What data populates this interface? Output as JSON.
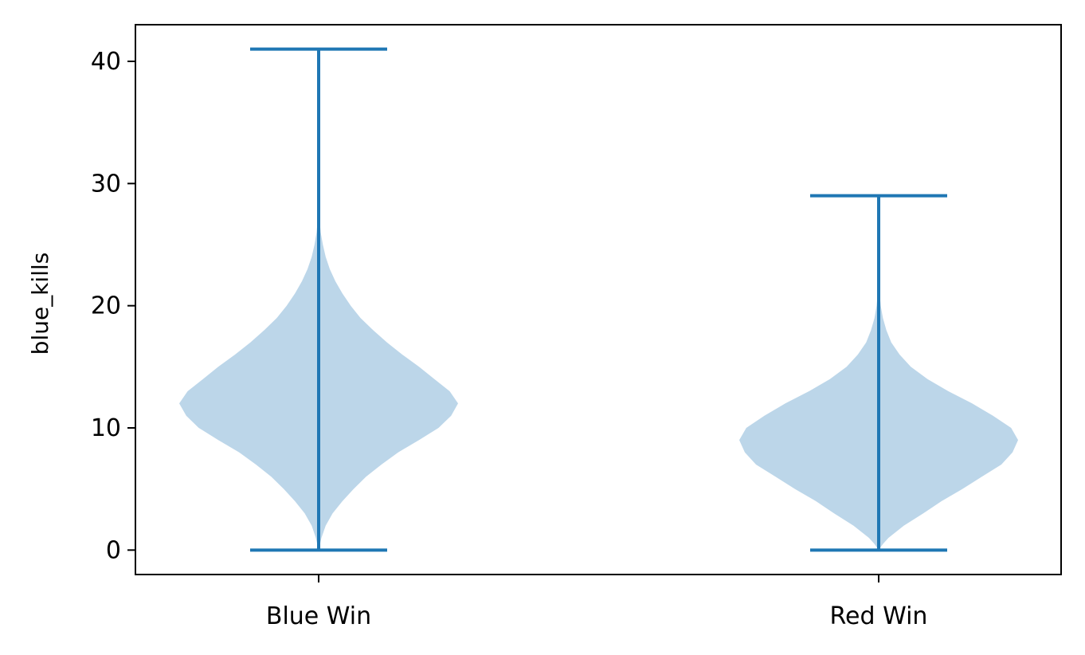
{
  "chart_data": {
    "type": "violin",
    "title": "",
    "xlabel": "",
    "ylabel": "blue_kills",
    "categories": [
      "Blue Win",
      "Red Win"
    ],
    "ylim": [
      -2,
      43
    ],
    "yticks": [
      0,
      10,
      20,
      30,
      40
    ],
    "grid": false,
    "colors": {
      "body": "#bcd6e9",
      "lines": "#1f77b4"
    },
    "series": [
      {
        "category": "Blue Win",
        "min": 0,
        "max": 41,
        "density": [
          [
            0.0,
            0.0
          ],
          [
            1.0,
            0.02
          ],
          [
            2.0,
            0.05
          ],
          [
            3.0,
            0.1
          ],
          [
            4.0,
            0.17
          ],
          [
            5.0,
            0.25
          ],
          [
            6.0,
            0.34
          ],
          [
            7.0,
            0.45
          ],
          [
            8.0,
            0.57
          ],
          [
            9.0,
            0.72
          ],
          [
            10.0,
            0.86
          ],
          [
            11.0,
            0.95
          ],
          [
            12.0,
            1.0
          ],
          [
            13.0,
            0.94
          ],
          [
            14.0,
            0.83
          ],
          [
            15.0,
            0.72
          ],
          [
            16.0,
            0.6
          ],
          [
            17.0,
            0.49
          ],
          [
            18.0,
            0.39
          ],
          [
            19.0,
            0.3
          ],
          [
            20.0,
            0.23
          ],
          [
            21.0,
            0.17
          ],
          [
            22.0,
            0.12
          ],
          [
            23.0,
            0.08
          ],
          [
            24.0,
            0.05
          ],
          [
            25.0,
            0.03
          ],
          [
            26.0,
            0.015
          ],
          [
            27.0,
            0.007
          ],
          [
            28.0,
            0.0
          ]
        ]
      },
      {
        "category": "Red Win",
        "min": 0,
        "max": 29,
        "density": [
          [
            0.0,
            0.0
          ],
          [
            0.5,
            0.03
          ],
          [
            1.0,
            0.07
          ],
          [
            2.0,
            0.18
          ],
          [
            3.0,
            0.32
          ],
          [
            4.0,
            0.45
          ],
          [
            5.0,
            0.6
          ],
          [
            6.0,
            0.74
          ],
          [
            7.0,
            0.88
          ],
          [
            8.0,
            0.96
          ],
          [
            9.0,
            1.0
          ],
          [
            10.0,
            0.95
          ],
          [
            11.0,
            0.82
          ],
          [
            12.0,
            0.67
          ],
          [
            13.0,
            0.5
          ],
          [
            14.0,
            0.35
          ],
          [
            15.0,
            0.23
          ],
          [
            16.0,
            0.15
          ],
          [
            17.0,
            0.09
          ],
          [
            18.0,
            0.055
          ],
          [
            19.0,
            0.03
          ],
          [
            20.0,
            0.015
          ],
          [
            21.0,
            0.007
          ],
          [
            22.0,
            0.0
          ]
        ]
      }
    ]
  }
}
